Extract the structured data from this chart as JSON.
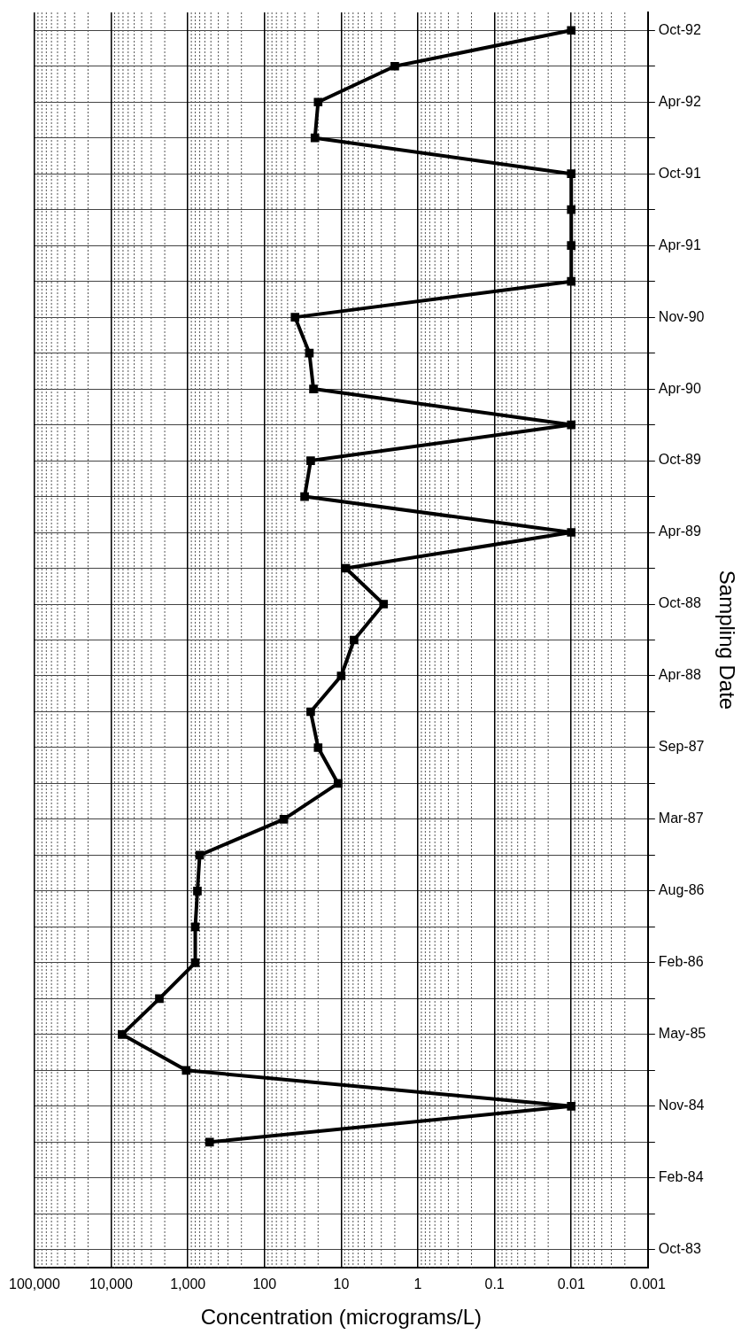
{
  "chart_data": {
    "type": "line",
    "orientation": "horizontal",
    "xlabel": "Concentration (micrograms/L)",
    "ylabel": "Sampling Date",
    "categories": [
      "Oct-92",
      null,
      "Apr-92",
      null,
      "Oct-91",
      null,
      "Apr-91",
      null,
      "Nov-90",
      null,
      "Apr-90",
      null,
      "Oct-89",
      null,
      "Apr-89",
      null,
      "Oct-88",
      null,
      "Apr-88",
      null,
      "Sep-87",
      null,
      "Mar-87",
      null,
      "Aug-86",
      null,
      "Feb-86",
      null,
      "May-85",
      null,
      "Nov-84",
      null,
      "Feb-84",
      null,
      "Oct-83"
    ],
    "series": [
      {
        "color": "#000000",
        "values": [
          0.01,
          2,
          20,
          22,
          0.01,
          0.01,
          0.01,
          0.01,
          40,
          26,
          23,
          0.01,
          25,
          30,
          0.01,
          8.7,
          2.8,
          6.8,
          10,
          25,
          20,
          11,
          56,
          700,
          750,
          800,
          800,
          2350,
          7200,
          1050,
          0.01,
          520,
          null,
          null,
          null
        ]
      }
    ],
    "log": "x",
    "xlim": [
      100000,
      0.001
    ],
    "xticks": [
      {
        "value": 100000,
        "label": "100,000"
      },
      {
        "value": 10000,
        "label": "10,000"
      },
      {
        "value": 1000,
        "label": "1,000"
      },
      100,
      10,
      1,
      0.1,
      0.01,
      0.001
    ],
    "grid": true,
    "marker": "square",
    "line_style": "solid"
  }
}
